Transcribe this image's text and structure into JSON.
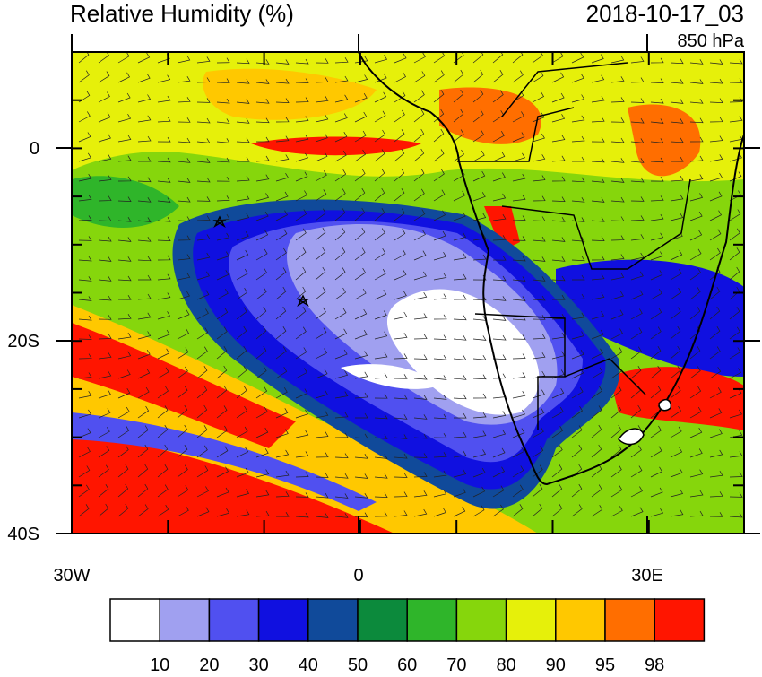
{
  "title": "Relative Humidity (%)",
  "timestamp": "2018-10-17_03",
  "level": "850 hPa",
  "x_axis": {
    "labels": [
      "30W",
      "0",
      "30E"
    ]
  },
  "y_axis": {
    "labels": [
      "0",
      "20S",
      "40S"
    ]
  },
  "colorbar": {
    "levels": [
      10,
      20,
      30,
      40,
      50,
      60,
      70,
      80,
      90,
      95,
      98
    ],
    "colors": [
      "#ffffff",
      "#a0a0f0",
      "#5050f0",
      "#1010e0",
      "#104a9a",
      "#0c8a3c",
      "#2fb52a",
      "#86d60c",
      "#e6f00a",
      "#ffc800",
      "#ff6e00",
      "#ff1500"
    ]
  }
}
